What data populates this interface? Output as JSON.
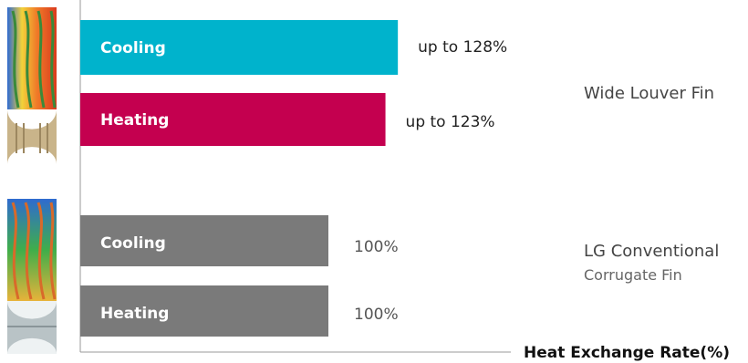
{
  "chart_data": {
    "type": "bar",
    "orientation": "horizontal",
    "groups": [
      {
        "name": "Wide Louver Fin",
        "subtitle": "",
        "bars": [
          {
            "label": "Cooling",
            "value": 128,
            "value_label": "up to 128%",
            "color": "#00b3cc"
          },
          {
            "label": "Heating",
            "value": 123,
            "value_label": "up to 123%",
            "color": "#c4004f"
          }
        ]
      },
      {
        "name": "LG Conventional",
        "subtitle": "Corrugate Fin",
        "bars": [
          {
            "label": "Cooling",
            "value": 100,
            "value_label": "100%",
            "color": "#7a7a7a"
          },
          {
            "label": "Heating",
            "value": 100,
            "value_label": "100%",
            "color": "#7a7a7a"
          }
        ]
      }
    ],
    "xlabel": "Heat Exchange Rate(%)",
    "xlim": [
      0,
      180
    ]
  }
}
